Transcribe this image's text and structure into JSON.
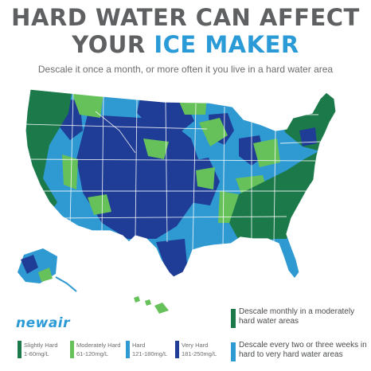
{
  "title": {
    "line1": "HARD WATER CAN AFFECT",
    "line2_prefix": "YOUR",
    "line2_accent": "ICE MAKER"
  },
  "subtitle": "Descale it once a month, or more often it you live in a hard water area",
  "brand": "newair",
  "colors": {
    "slightly_hard": "#1c7a4a",
    "moderately_hard": "#67c15a",
    "hard": "#2f9ad2",
    "very_hard": "#1f3c96",
    "title_accent": "#2a9bd6"
  },
  "legend": [
    {
      "label": "Slightly Hard",
      "range": "1-60mg/L",
      "color": "#1c7a4a"
    },
    {
      "label": "Moderately Hard",
      "range": "61-120mg/L",
      "color": "#67c15a"
    },
    {
      "label": "Hard",
      "range": "121-180mg/L",
      "color": "#2f9ad2"
    },
    {
      "label": "Very Hard",
      "range": "181-250mg/L",
      "color": "#1f3c96"
    }
  ],
  "advice": [
    {
      "text": "Descale monthly in a moderately hard water areas",
      "color": "#1c7a4a"
    },
    {
      "text": "Descale every two or three weeks in hard to very hard water areas",
      "color": "#2f9ad2"
    }
  ]
}
